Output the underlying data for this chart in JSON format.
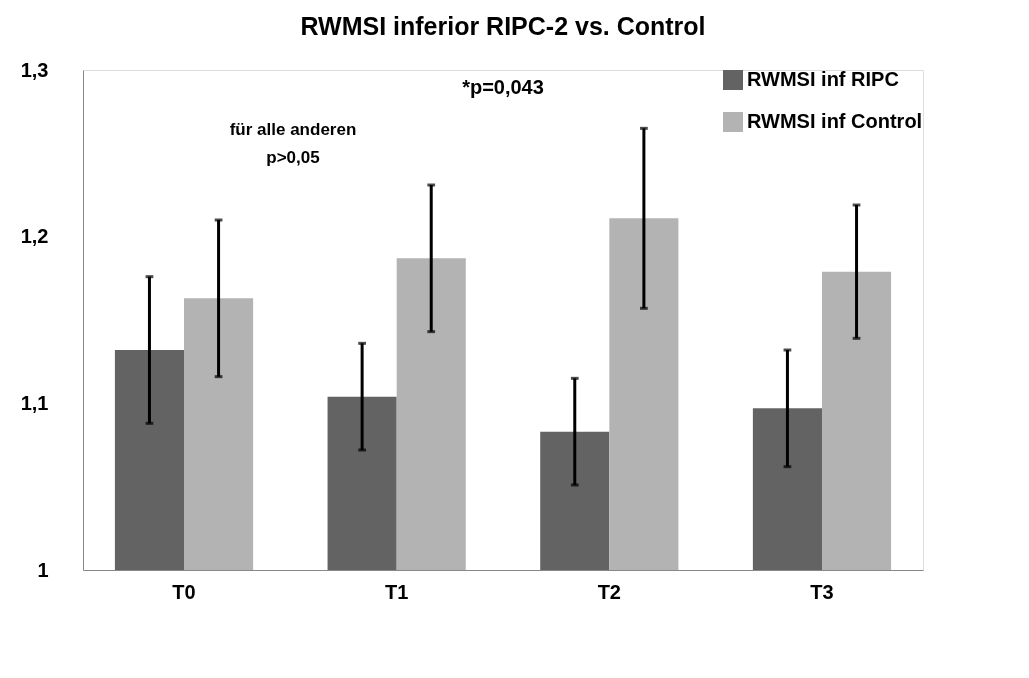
{
  "chart_data": {
    "type": "bar",
    "title": "RWMSI inferior RIPC-2 vs. Control",
    "categories": [
      "T0",
      "T1",
      "T2",
      "T3"
    ],
    "series": [
      {
        "name": "RWMSI inf RIPC",
        "color": "#636363",
        "values": [
          1.132,
          1.104,
          1.083,
          1.097
        ],
        "errors": [
          0.044,
          0.032,
          0.032,
          0.035
        ]
      },
      {
        "name": "RWMSI inf Control",
        "color": "#b3b3b3",
        "values": [
          1.163,
          1.187,
          1.211,
          1.179
        ],
        "errors": [
          0.047,
          0.044,
          0.054,
          0.04
        ]
      }
    ],
    "ylim": [
      1,
      1.3
    ],
    "yticks": [
      1,
      {
        "value": 1.1,
        "label": "1,1"
      },
      {
        "value": 1.2,
        "label": "1,2"
      },
      {
        "value": 1.3,
        "label": "1,3"
      }
    ],
    "annotations": [
      "für alle anderen\np>0,05",
      "*p=0,043"
    ],
    "legend": "top right",
    "grid": false
  }
}
